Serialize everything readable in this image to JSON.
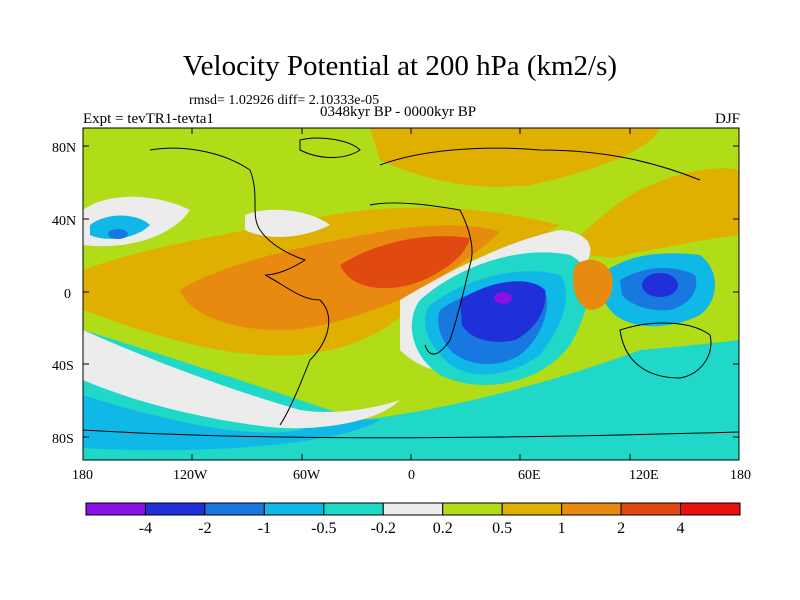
{
  "title": "Velocity Potential at 200 hPa (km2/s)",
  "stats": "rmsd= 1.02926 diff= 2.10333e-05",
  "left_label": "Expt = tevTR1-tevta1",
  "center_label": "0348kyr BP - 0000kyr BP",
  "right_label": "DJF",
  "lat_labels": [
    "80N",
    "40N",
    "0",
    "40S",
    "80S"
  ],
  "lon_labels": [
    "180",
    "120W",
    "60W",
    "0",
    "60E",
    "120E",
    "180"
  ],
  "colorbar": {
    "colors": [
      "#8a10e6",
      "#2030d8",
      "#1878e0",
      "#10b8e8",
      "#20d8c8",
      "#ececec",
      "#b0dc18",
      "#e0b000",
      "#e88a10",
      "#e04a10",
      "#e81010"
    ],
    "labels": [
      "-4",
      "-2",
      "-1",
      "-0.5",
      "-0.2",
      "0.2",
      "0.5",
      "1",
      "2",
      "4"
    ]
  }
}
